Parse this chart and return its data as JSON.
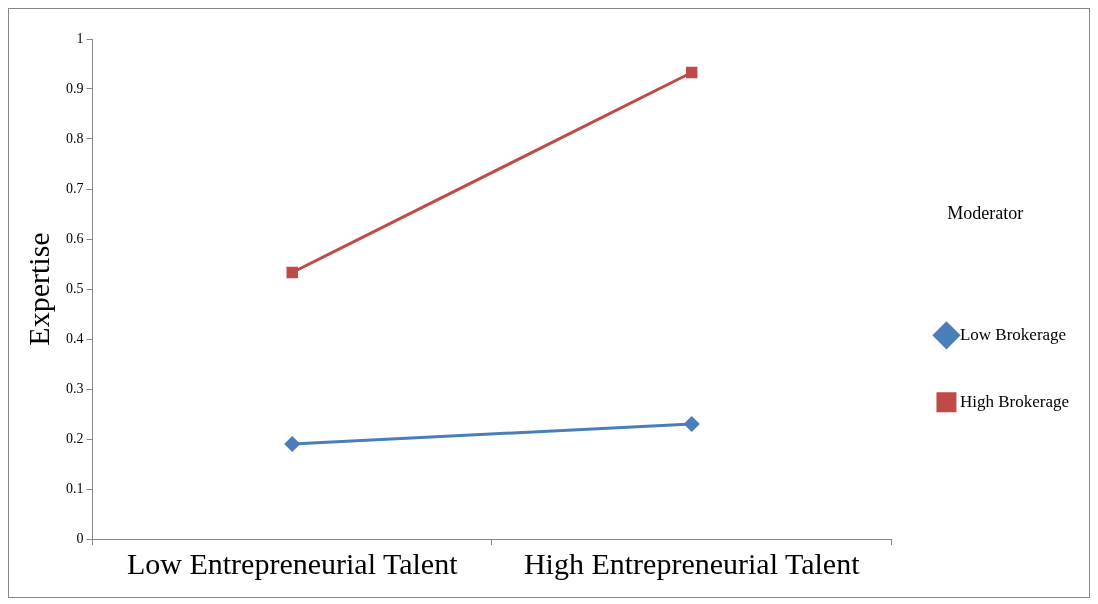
{
  "chart_data": {
    "type": "line",
    "ylabel": "Expertise",
    "legend_title": "Moderator",
    "categories": [
      "Low Entrepreneurial Talent",
      "High Entrepreneurial Talent"
    ],
    "series": [
      {
        "name": "Low Brokerage",
        "color": "#4a7ebb",
        "values": [
          0.19,
          0.23
        ],
        "marker": "diamond"
      },
      {
        "name": "High Brokerage",
        "color": "#be4b48",
        "values": [
          0.533,
          0.933
        ],
        "marker": "square"
      }
    ],
    "ylim": [
      0,
      1
    ],
    "yticks": [
      0,
      0.1,
      0.2,
      0.3,
      0.4,
      0.5,
      0.6,
      0.7,
      0.8,
      0.9,
      1
    ],
    "grid": false,
    "legend": "right",
    "line_style": "solid"
  }
}
